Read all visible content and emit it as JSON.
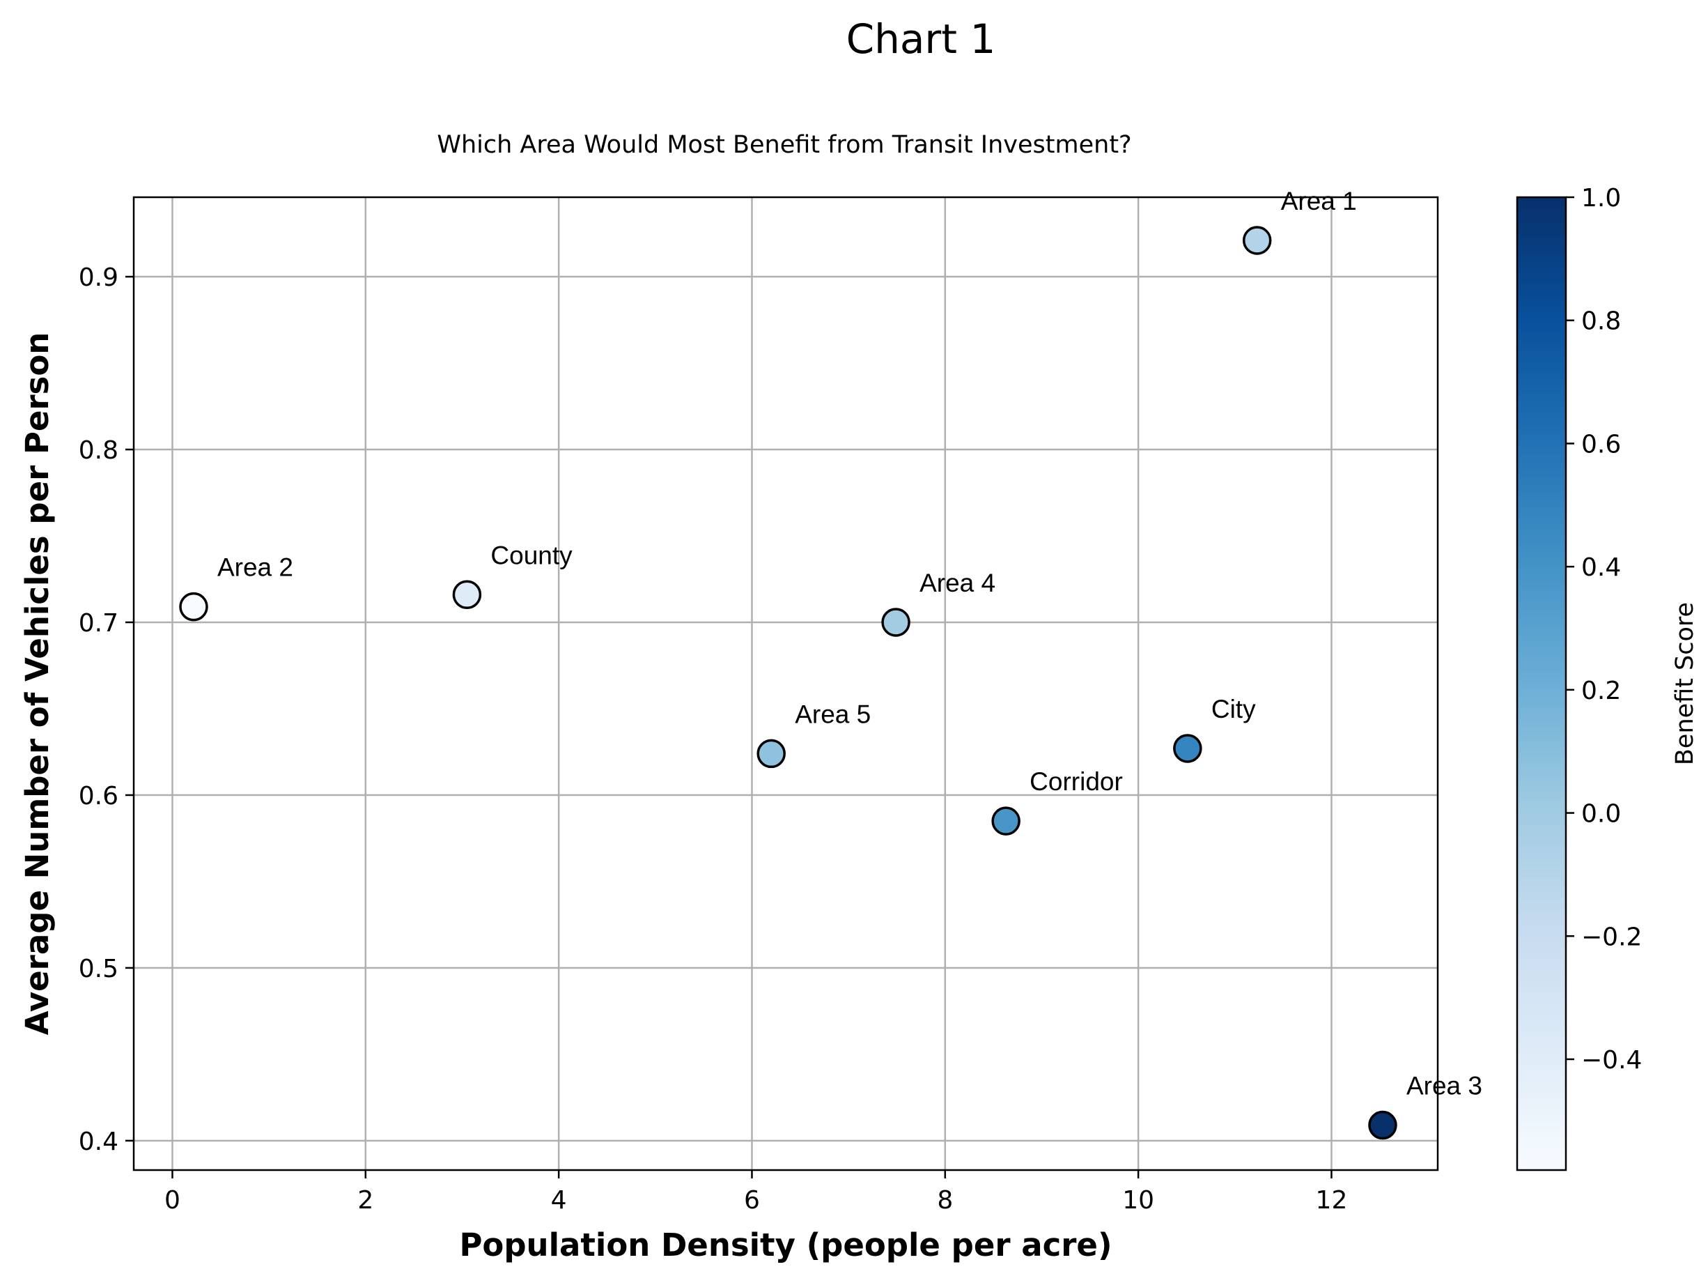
{
  "chart_data": {
    "type": "scatter",
    "title": "Chart 1",
    "subtitle": "Which Area Would Most Benefit from Transit Investment?",
    "xlabel": "Population Density (people per acre)",
    "ylabel": "Average Number of Vehicles per Person",
    "xlim": [
      -0.4,
      13.1
    ],
    "ylim": [
      0.383,
      0.946
    ],
    "xticks": [
      0,
      2,
      4,
      6,
      8,
      10,
      12
    ],
    "yticks": [
      0.4,
      0.5,
      0.6,
      0.7,
      0.8,
      0.9
    ],
    "grid": true,
    "colorbar": {
      "label": "Benefit Score",
      "colormap": "Blues",
      "range": [
        -0.58,
        1.0
      ],
      "ticks": [
        -0.4,
        -0.2,
        0.0,
        0.2,
        0.4,
        0.6,
        0.8,
        1.0
      ],
      "tick_labels": [
        "−0.4",
        "−0.2",
        "0.0",
        "0.2",
        "0.4",
        "0.6",
        "0.8",
        "1.0"
      ]
    },
    "points": [
      {
        "label": "Area 1",
        "x": 11.23,
        "y": 0.921,
        "score": -0.09
      },
      {
        "label": "Area 2",
        "x": 0.22,
        "y": 0.709,
        "score": -0.58
      },
      {
        "label": "County",
        "x": 3.05,
        "y": 0.716,
        "score": -0.39
      },
      {
        "label": "Area 4",
        "x": 7.49,
        "y": 0.7,
        "score": -0.01
      },
      {
        "label": "Area 5",
        "x": 6.2,
        "y": 0.624,
        "score": 0.07
      },
      {
        "label": "Corridor",
        "x": 8.63,
        "y": 0.585,
        "score": 0.38
      },
      {
        "label": "City",
        "x": 10.51,
        "y": 0.627,
        "score": 0.49
      },
      {
        "label": "Area 3",
        "x": 12.53,
        "y": 0.409,
        "score": 1.0
      }
    ]
  }
}
